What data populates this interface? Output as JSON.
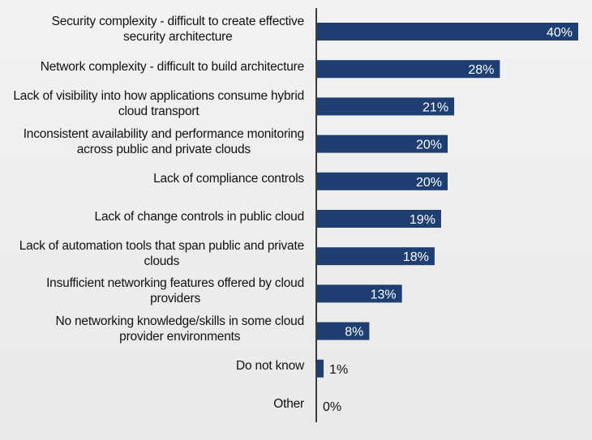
{
  "chart_data": {
    "type": "bar",
    "orientation": "horizontal",
    "title": "",
    "xlabel": "",
    "ylabel": "",
    "xlim": [
      0,
      40
    ],
    "grid": false,
    "bar_color": "#1f3f73",
    "categories": [
      [
        "Security complexity - difficult to create effective",
        "security architecture"
      ],
      [
        "Network complexity - difficult to build architecture"
      ],
      [
        "Lack of visibility into how applications consume hybrid",
        "cloud transport"
      ],
      [
        "Inconsistent availability and performance monitoring",
        "across public and private clouds"
      ],
      [
        "Lack of compliance controls"
      ],
      [
        "Lack of change controls in public cloud"
      ],
      [
        "Lack of automation tools that span public and private",
        "clouds"
      ],
      [
        "Insufficient networking features offered by cloud",
        "providers"
      ],
      [
        "No networking knowledge/skills in some cloud",
        "provider environments"
      ],
      [
        "Do not know"
      ],
      [
        "Other"
      ]
    ],
    "values": [
      40,
      28,
      21,
      20,
      20,
      19,
      18,
      13,
      8,
      1,
      0
    ],
    "value_labels": [
      "40%",
      "28%",
      "21%",
      "20%",
      "20%",
      "19%",
      "18%",
      "13%",
      "8%",
      "1%",
      "0%"
    ]
  }
}
